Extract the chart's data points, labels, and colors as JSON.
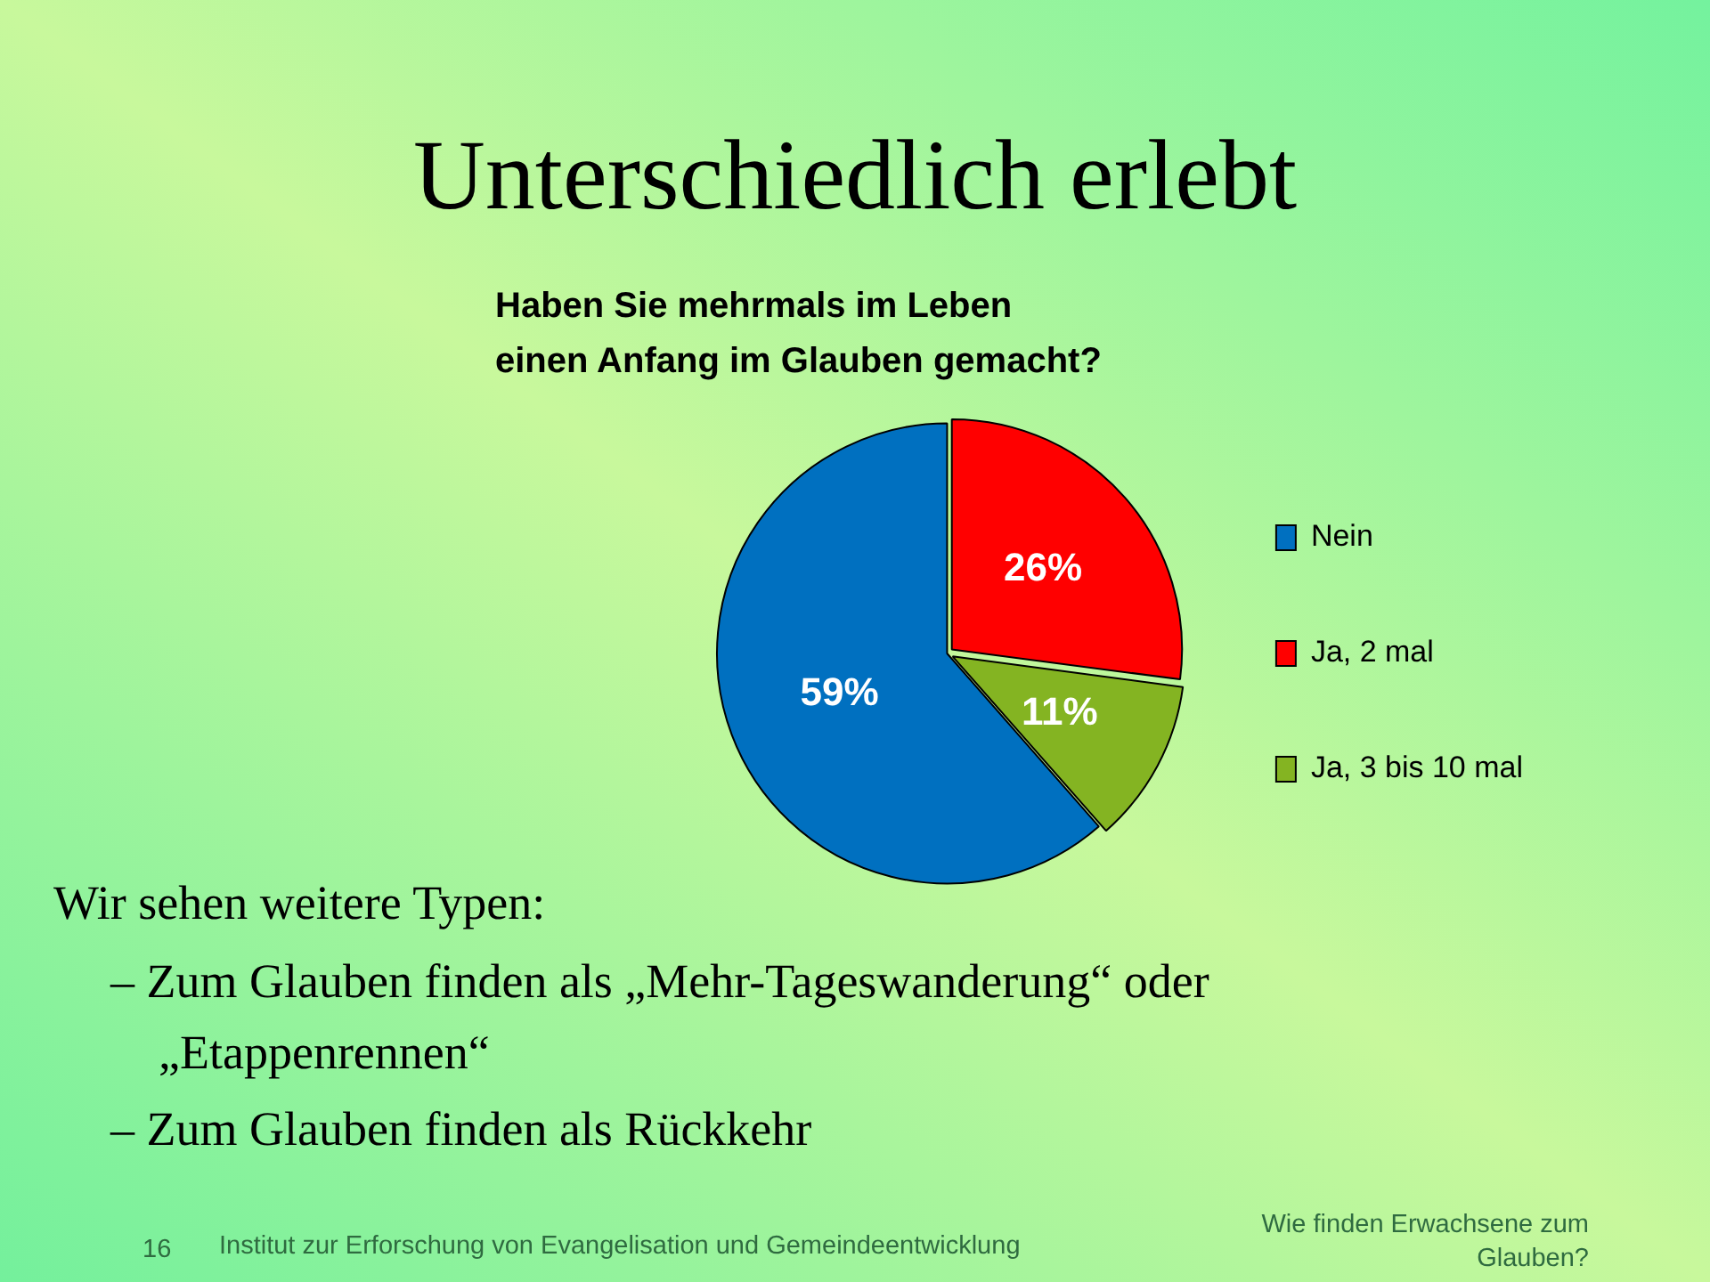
{
  "chart_data": {
    "type": "pie",
    "title": "Unterschiedlich erlebt",
    "subtitle": "Haben Sie mehrmals im Leben\neinen Anfang im Glauben gemacht?",
    "categories": [
      "Nein",
      "Ja, 2 mal",
      "Ja, 3 bis 10 mal"
    ],
    "values": [
      59,
      26,
      11
    ],
    "colors": [
      "#0070c0",
      "#ff0000",
      "#84b422"
    ],
    "value_labels": [
      "59%",
      "26%",
      "11%"
    ],
    "legend": "right",
    "annotations": [
      "Wir sehen weitere Typen:",
      "– Zum Glauben finden als „Mehr-Tageswanderung“ oder „Etappenrennen“",
      "– Zum Glauben finden als Rückkehr",
      "16",
      "Institut zur Erforschung von Evangelisation und Gemeindeentwicklung",
      "Wie finden Erwachsene zum Glauben?"
    ]
  }
}
